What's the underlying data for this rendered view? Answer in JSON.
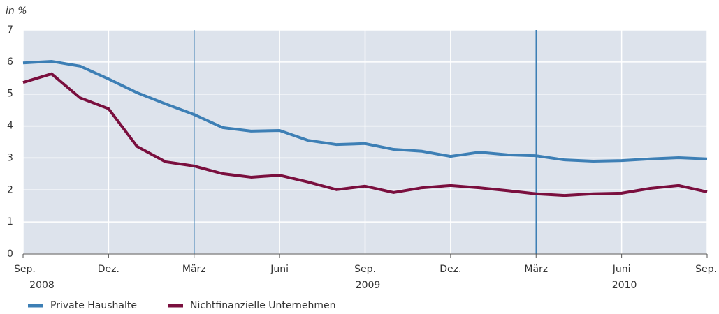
{
  "chart_data": {
    "type": "line",
    "y_label": "in %",
    "categories": [
      "Sep.",
      null,
      null,
      "Dez.",
      null,
      null,
      "März",
      null,
      null,
      "Juni",
      null,
      null,
      "Sep.",
      null,
      null,
      "Dez.",
      null,
      null,
      "März",
      null,
      null,
      "Juni",
      null,
      null,
      "Sep."
    ],
    "years": [
      "2008",
      "2009",
      "2010"
    ],
    "series": [
      {
        "name": "Private Haushalte",
        "color": "#3d7fb5",
        "values": [
          5.97,
          6.02,
          5.87,
          5.47,
          5.04,
          4.69,
          4.36,
          3.95,
          3.84,
          3.86,
          3.55,
          3.42,
          3.45,
          3.27,
          3.21,
          3.05,
          3.18,
          3.1,
          3.07,
          2.94,
          2.9,
          2.92,
          2.97,
          3.01,
          2.97
        ]
      },
      {
        "name": "Nichtfinanzielle Unternehmen",
        "color": "#7a0f3e",
        "values": [
          5.36,
          5.63,
          4.88,
          4.54,
          3.36,
          2.88,
          2.75,
          2.51,
          2.4,
          2.46,
          2.25,
          2.01,
          2.12,
          1.92,
          2.07,
          2.14,
          2.07,
          1.98,
          1.88,
          1.83,
          1.88,
          1.9,
          2.05,
          2.14,
          1.94
        ]
      }
    ],
    "ylim": [
      0,
      7
    ],
    "yticks": [
      0,
      1,
      2,
      3,
      4,
      5,
      6,
      7
    ],
    "grid": true
  }
}
